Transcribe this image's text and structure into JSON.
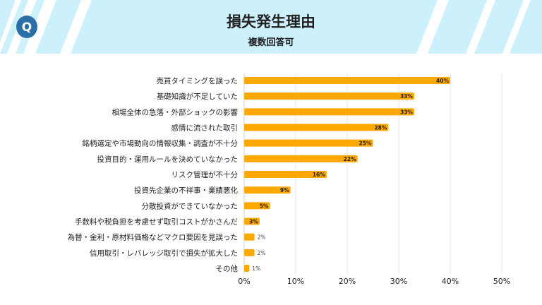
{
  "chart_data": {
    "type": "bar",
    "orientation": "horizontal",
    "title": "損失発生理由",
    "subtitle": "複数回答可",
    "categories": [
      "売買タイミングを誤った",
      "基礎知識が不足していた",
      "相場全体の急落・外部ショックの影響",
      "感情に流された取引",
      "銘柄選定や市場動向の情報収集・調査が不十分",
      "投資目的・運用ルールを決めていなかった",
      "リスク管理が不十分",
      "投資先企業の不祥事・業績悪化",
      "分散投資ができていなかった",
      "手数料や税負担を考慮せず取引コストがかさんだ",
      "為替・金利・原材料価格などマクロ要因を見誤った",
      "信用取引・レバレッジ取引で損失が拡大した",
      "その他"
    ],
    "values": [
      40,
      33,
      33,
      28,
      25,
      22,
      16,
      9,
      5,
      3,
      2,
      2,
      1
    ],
    "data_labels": [
      "40%",
      "33%",
      "33%",
      "28%",
      "25%",
      "22%",
      "16%",
      "9%",
      "5%",
      "3%",
      "2%",
      "2%",
      "1%"
    ],
    "xlim": [
      0,
      50
    ],
    "x_ticks": [
      "0%",
      "10%",
      "20%",
      "30%",
      "40%",
      "50%"
    ],
    "xlabel": "",
    "ylabel": "",
    "grid": "vertical",
    "legend": "none",
    "colors": {
      "bar": "#ffa800",
      "header_band": "#cdf1fc",
      "logo": "#2a6fa8"
    },
    "logo_letter": "Q"
  }
}
